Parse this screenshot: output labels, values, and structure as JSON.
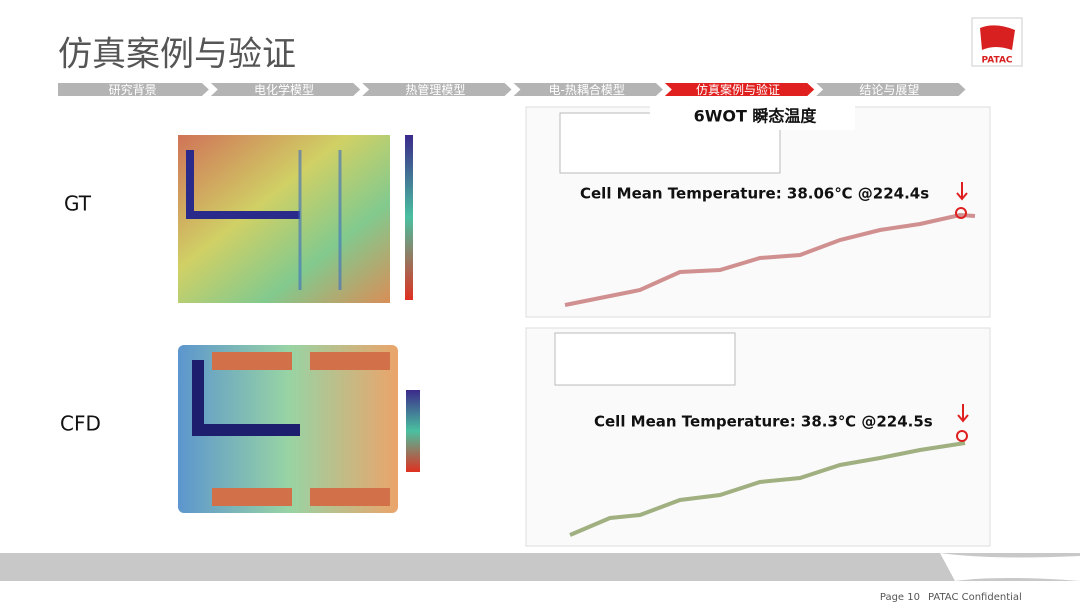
{
  "header": {
    "title": "仿真案例与验证",
    "logo": "PATAC"
  },
  "nav": {
    "items": [
      "研究背景",
      "电化学模型",
      "热管理模型",
      "电-热耦合模型",
      "仿真案例与验证",
      "结论与展望"
    ],
    "active": 4
  },
  "content": {
    "chart_heading": "6WOT 瞬态温度",
    "rows": [
      {
        "label": "GT",
        "annotation": "Cell Mean Temperature: 38.06℃ @224.4s"
      },
      {
        "label": "CFD",
        "annotation": "Cell Mean Temperature: 38.3℃ @224.5s"
      }
    ]
  },
  "footer": {
    "page": "Page 10",
    "confidential": "PATAC Confidential"
  }
}
